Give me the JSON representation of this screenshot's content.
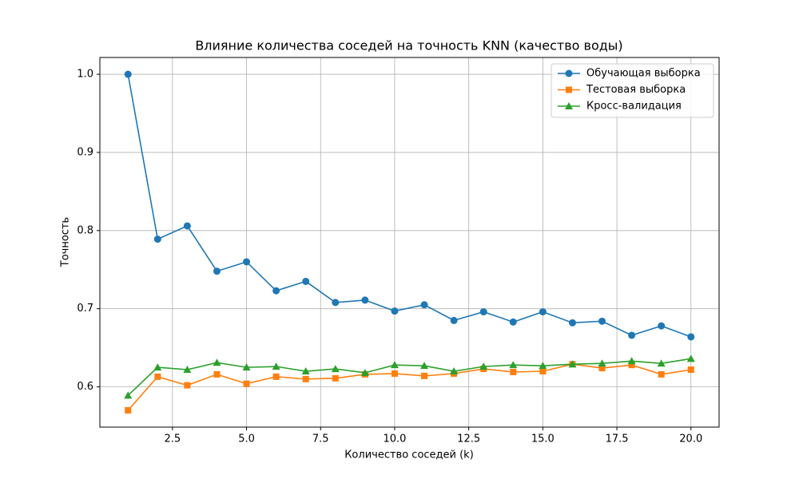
{
  "chart_data": {
    "type": "line",
    "title": "Влияние количества соседей на точность KNN (качество воды)",
    "x_label": "Количество соседей (k)",
    "y_label": "Точность",
    "x": [
      1,
      2,
      3,
      4,
      5,
      6,
      7,
      8,
      9,
      10,
      11,
      12,
      13,
      14,
      15,
      16,
      17,
      18,
      19,
      20
    ],
    "series": [
      {
        "name": "Обучающая выборка",
        "color": "#1f77b4",
        "marker": "circle",
        "values": [
          1.0,
          0.789,
          0.806,
          0.748,
          0.76,
          0.723,
          0.735,
          0.708,
          0.711,
          0.697,
          0.705,
          0.685,
          0.696,
          0.683,
          0.696,
          0.682,
          0.684,
          0.666,
          0.678,
          0.664
        ]
      },
      {
        "name": "Тестовая выборка",
        "color": "#ff7f0e",
        "marker": "square",
        "values": [
          0.57,
          0.613,
          0.602,
          0.616,
          0.604,
          0.613,
          0.61,
          0.611,
          0.616,
          0.617,
          0.614,
          0.617,
          0.623,
          0.619,
          0.62,
          0.629,
          0.624,
          0.628,
          0.616,
          0.622
        ]
      },
      {
        "name": "Кросс-валидация",
        "color": "#2ca02c",
        "marker": "triangle",
        "values": [
          0.589,
          0.625,
          0.622,
          0.631,
          0.625,
          0.626,
          0.62,
          0.623,
          0.618,
          0.628,
          0.627,
          0.62,
          0.626,
          0.628,
          0.627,
          0.629,
          0.63,
          0.633,
          0.63,
          0.636
        ]
      }
    ],
    "xlim": [
      0.05,
      20.95
    ],
    "xticks": [
      2.5,
      {
        "value": 5,
        "label": "5.0"
      },
      7.5,
      {
        "value": 10,
        "label": "10.0"
      },
      12.5,
      {
        "value": 15,
        "label": "15.0"
      },
      17.5,
      {
        "value": 20,
        "label": "20.0"
      }
    ],
    "ylim": [
      0.5485,
      1.0215
    ],
    "yticks": [
      0.6,
      0.7,
      0.8,
      0.9,
      {
        "value": 1,
        "label": "1.0"
      }
    ],
    "grid": true,
    "legend": "upper-right"
  }
}
